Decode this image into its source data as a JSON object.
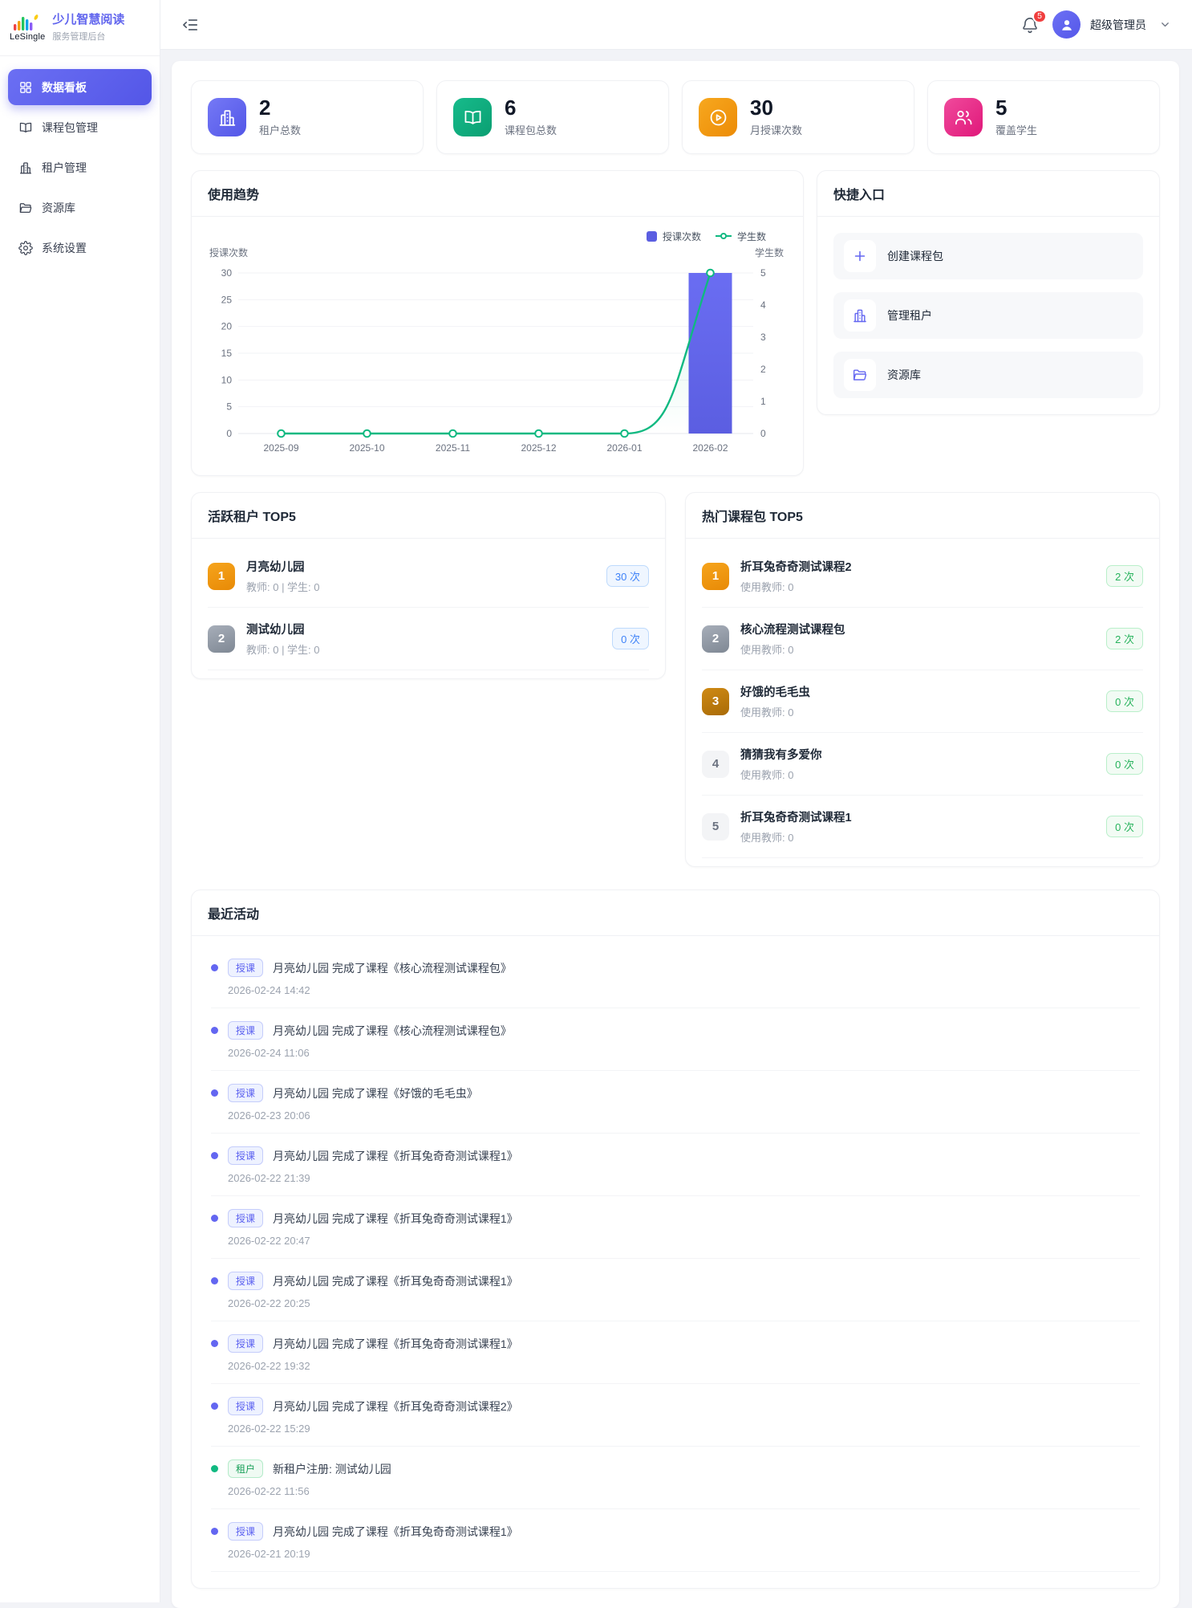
{
  "brand": {
    "logo_text": "LeSingle",
    "title": "少儿智慧阅读",
    "subtitle": "服务管理后台"
  },
  "sidebar": {
    "items": [
      {
        "label": "数据看板",
        "icon": "dashboard-icon",
        "state": "active"
      },
      {
        "label": "课程包管理",
        "icon": "book-icon",
        "state": ""
      },
      {
        "label": "租户管理",
        "icon": "building-icon",
        "state": ""
      },
      {
        "label": "资源库",
        "icon": "folder-icon",
        "state": ""
      },
      {
        "label": "系统设置",
        "icon": "gear-icon",
        "state": ""
      }
    ]
  },
  "header": {
    "notification_count": "5",
    "user_name": "超级管理员"
  },
  "stats": [
    {
      "value": "2",
      "label": "租户总数",
      "icon": "building-icon",
      "color": "#6366f1"
    },
    {
      "value": "6",
      "label": "课程包总数",
      "icon": "book-icon",
      "color": "#10b981"
    },
    {
      "value": "30",
      "label": "月授课次数",
      "icon": "play-circle-icon",
      "color": "#f59e0b"
    },
    {
      "value": "5",
      "label": "覆盖学生",
      "icon": "users-icon",
      "color": "#ec4899"
    }
  ],
  "usage_trend": {
    "title": "使用趋势"
  },
  "chart_data": {
    "type": "bar+line",
    "categories": [
      "2025-09",
      "2025-10",
      "2025-11",
      "2025-12",
      "2026-01",
      "2026-02"
    ],
    "series": [
      {
        "name": "授课次数",
        "type": "bar",
        "axis": "left",
        "values": [
          0,
          0,
          0,
          0,
          0,
          30
        ],
        "color": "#5b5ee1"
      },
      {
        "name": "学生数",
        "type": "line",
        "axis": "right",
        "values": [
          0,
          0,
          0,
          0,
          0,
          5
        ],
        "color": "#10b981"
      }
    ],
    "left_axis": {
      "title": "授课次数",
      "ticks": [
        0,
        5,
        10,
        15,
        20,
        25,
        30
      ],
      "max": 30
    },
    "right_axis": {
      "title": "学生数",
      "ticks": [
        0,
        1,
        2,
        3,
        4,
        5
      ],
      "max": 5
    },
    "legend_position": "top-right",
    "grid": true
  },
  "quick_entry": {
    "title": "快捷入口",
    "items": [
      {
        "label": "创建课程包",
        "icon": "plus-icon"
      },
      {
        "label": "管理租户",
        "icon": "building-icon"
      },
      {
        "label": "资源库",
        "icon": "folder-icon"
      }
    ]
  },
  "active_tenants": {
    "title": "活跃租户 TOP5",
    "items": [
      {
        "rank": "1",
        "name": "月亮幼儿园",
        "meta": "教师: 0 | 学生: 0",
        "count": "30 次"
      },
      {
        "rank": "2",
        "name": "测试幼儿园",
        "meta": "教师: 0 | 学生: 0",
        "count": "0 次"
      }
    ]
  },
  "hot_packages": {
    "title": "热门课程包 TOP5",
    "items": [
      {
        "rank": "1",
        "name": "折耳兔奇奇测试课程2",
        "meta": "使用教师: 0",
        "count": "2 次"
      },
      {
        "rank": "2",
        "name": "核心流程测试课程包",
        "meta": "使用教师: 0",
        "count": "2 次"
      },
      {
        "rank": "3",
        "name": "好饿的毛毛虫",
        "meta": "使用教师: 0",
        "count": "0 次"
      },
      {
        "rank": "4",
        "name": "猜猜我有多爱你",
        "meta": "使用教师: 0",
        "count": "0 次"
      },
      {
        "rank": "5",
        "name": "折耳兔奇奇测试课程1",
        "meta": "使用教师: 0",
        "count": "0 次"
      }
    ]
  },
  "recent_activities": {
    "title": "最近活动",
    "items": [
      {
        "kind": "teach",
        "badge": "授课",
        "text": "月亮幼儿园 完成了课程《核心流程测试课程包》",
        "time": "2026-02-24 14:42"
      },
      {
        "kind": "teach",
        "badge": "授课",
        "text": "月亮幼儿园 完成了课程《核心流程测试课程包》",
        "time": "2026-02-24 11:06"
      },
      {
        "kind": "teach",
        "badge": "授课",
        "text": "月亮幼儿园 完成了课程《好饿的毛毛虫》",
        "time": "2026-02-23 20:06"
      },
      {
        "kind": "teach",
        "badge": "授课",
        "text": "月亮幼儿园 完成了课程《折耳兔奇奇测试课程1》",
        "time": "2026-02-22 21:39"
      },
      {
        "kind": "teach",
        "badge": "授课",
        "text": "月亮幼儿园 完成了课程《折耳兔奇奇测试课程1》",
        "time": "2026-02-22 20:47"
      },
      {
        "kind": "teach",
        "badge": "授课",
        "text": "月亮幼儿园 完成了课程《折耳兔奇奇测试课程1》",
        "time": "2026-02-22 20:25"
      },
      {
        "kind": "teach",
        "badge": "授课",
        "text": "月亮幼儿园 完成了课程《折耳兔奇奇测试课程1》",
        "time": "2026-02-22 19:32"
      },
      {
        "kind": "teach",
        "badge": "授课",
        "text": "月亮幼儿园 完成了课程《折耳兔奇奇测试课程2》",
        "time": "2026-02-22 15:29"
      },
      {
        "kind": "tenant",
        "badge": "租户",
        "text": "新租户注册: 测试幼儿园",
        "time": "2026-02-22 11:56"
      },
      {
        "kind": "teach",
        "badge": "授课",
        "text": "月亮幼儿园 完成了课程《折耳兔奇奇测试课程1》",
        "time": "2026-02-21 20:19"
      }
    ]
  }
}
